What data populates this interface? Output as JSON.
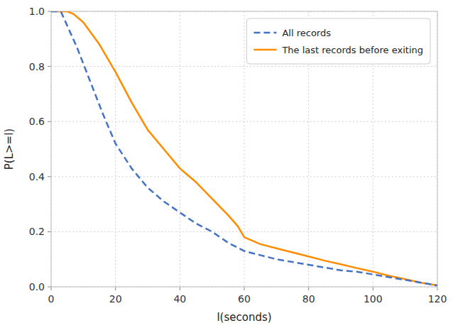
{
  "chart_data": {
    "type": "line",
    "xlabel": "l(seconds)",
    "ylabel": "P(L>=l)",
    "xlim": [
      0,
      120
    ],
    "ylim": [
      0.0,
      1.0
    ],
    "xticks": [
      0,
      20,
      40,
      60,
      80,
      100,
      120
    ],
    "yticks": [
      {
        "value": 0.0,
        "label": "0.0"
      },
      0.2,
      0.4,
      0.6,
      0.8,
      {
        "value": 1.0,
        "label": "1.0"
      }
    ],
    "grid": true,
    "legend": "upper right",
    "series": [
      {
        "name": "All records",
        "color": "#4472C4",
        "line_style": "dashed",
        "x": [
          0,
          3,
          8,
          12,
          16,
          20,
          25,
          30,
          35,
          40,
          45,
          50,
          55,
          60,
          65,
          70,
          75,
          80,
          85,
          90,
          95,
          100,
          105,
          110,
          115,
          120
        ],
        "values": [
          1.0,
          1.0,
          0.87,
          0.75,
          0.63,
          0.52,
          0.43,
          0.36,
          0.31,
          0.27,
          0.23,
          0.2,
          0.16,
          0.13,
          0.115,
          0.1,
          0.09,
          0.08,
          0.07,
          0.06,
          0.055,
          0.045,
          0.035,
          0.025,
          0.015,
          0.005
        ]
      },
      {
        "name": "The last records before exiting",
        "color": "#FF8C00",
        "line_style": "solid",
        "x": [
          0,
          5,
          7,
          10,
          15,
          20,
          25,
          30,
          35,
          40,
          45,
          50,
          55,
          58,
          60,
          65,
          70,
          75,
          80,
          85,
          90,
          95,
          100,
          105,
          110,
          115,
          120
        ],
        "values": [
          1.0,
          1.0,
          0.99,
          0.96,
          0.88,
          0.78,
          0.67,
          0.57,
          0.5,
          0.43,
          0.38,
          0.32,
          0.26,
          0.22,
          0.18,
          0.155,
          0.14,
          0.125,
          0.11,
          0.095,
          0.082,
          0.068,
          0.055,
          0.04,
          0.028,
          0.015,
          0.005
        ]
      }
    ]
  }
}
